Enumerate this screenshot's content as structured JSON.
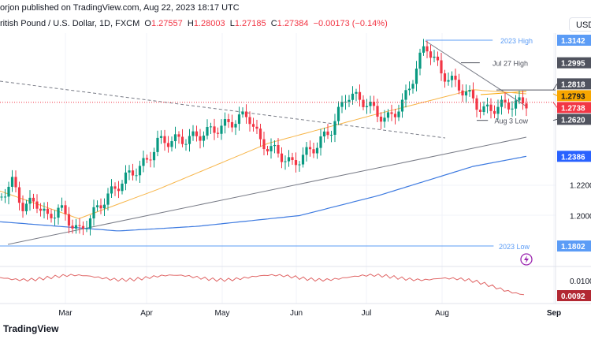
{
  "header": {
    "publisher": "orjon published on TradingView.com, Aug 22, 2023 18:17 UTC",
    "symbol": "ritish Pound / U.S. Dollar, 1D, FXCM",
    "o_label": "O",
    "o": "1.27557",
    "h_label": "H",
    "h": "1.28003",
    "l_label": "L",
    "l": "1.27185",
    "c_label": "C",
    "c": "1.27384",
    "change": "−0.00173 (−0.14%)"
  },
  "currency": "USD",
  "footer": {
    "brand": "TradingView"
  },
  "chart_data": {
    "type": "candlestick",
    "ylim": [
      1.1802,
      1.3142
    ],
    "y_ticks": [
      "1.2200",
      "1.2000"
    ],
    "x_ticks": [
      "Mar",
      "Apr",
      "May",
      "Jun",
      "Jul",
      "Aug",
      "Sep"
    ],
    "price_anchors": [
      [
        0,
        1.212
      ],
      [
        15,
        1.222
      ],
      [
        30,
        1.205
      ],
      [
        45,
        1.21
      ],
      [
        60,
        1.198
      ],
      [
        75,
        1.205
      ],
      [
        100,
        1.189
      ],
      [
        130,
        1.209
      ],
      [
        160,
        1.225
      ],
      [
        186,
        1.235
      ],
      [
        200,
        1.248
      ],
      [
        240,
        1.25
      ],
      [
        282,
        1.258
      ],
      [
        315,
        1.266
      ],
      [
        330,
        1.248
      ],
      [
        355,
        1.24
      ],
      [
        370,
        1.233
      ],
      [
        400,
        1.245
      ],
      [
        420,
        1.256
      ],
      [
        440,
        1.279
      ],
      [
        460,
        1.275
      ],
      [
        490,
        1.262
      ],
      [
        510,
        1.272
      ],
      [
        525,
        1.291
      ],
      [
        540,
        1.312
      ],
      [
        560,
        1.293
      ],
      [
        580,
        1.285
      ],
      [
        600,
        1.276
      ],
      [
        612,
        1.268
      ],
      [
        640,
        1.272
      ],
      [
        668,
        1.2738
      ]
    ],
    "ma50": [
      [
        0,
        1.216
      ],
      [
        100,
        1.198
      ],
      [
        200,
        1.217
      ],
      [
        340,
        1.247
      ],
      [
        470,
        1.265
      ],
      [
        600,
        1.282
      ],
      [
        668,
        1.2793
      ]
    ],
    "ma200": [
      [
        0,
        1.196
      ],
      [
        150,
        1.19
      ],
      [
        250,
        1.193
      ],
      [
        380,
        1.2
      ],
      [
        480,
        1.213
      ],
      [
        600,
        1.232
      ],
      [
        668,
        1.2386
      ]
    ],
    "levels": [
      {
        "label": "2023 High",
        "value": "1.3142",
        "color": "#5b9cf6"
      },
      {
        "label": "Jul 27 High",
        "value": "1.2995",
        "color": "#50535e"
      },
      {
        "label": "",
        "value": "1.2818",
        "color": "#50535e"
      },
      {
        "label": "",
        "value": "1.2793",
        "color": "#f7a600"
      },
      {
        "label": "",
        "value": "1.2738",
        "color": "#f23645"
      },
      {
        "label": "Aug 3 Low",
        "value": "1.2620",
        "color": "#50535e"
      },
      {
        "label": "",
        "value": "1.2386",
        "color": "#2962ff"
      },
      {
        "label": "2023 Low",
        "value": "1.1802",
        "color": "#5b9cf6"
      }
    ],
    "indicator": {
      "ticks": [
        "0.0100"
      ],
      "value": "0.0092",
      "color": "#b22833"
    }
  }
}
